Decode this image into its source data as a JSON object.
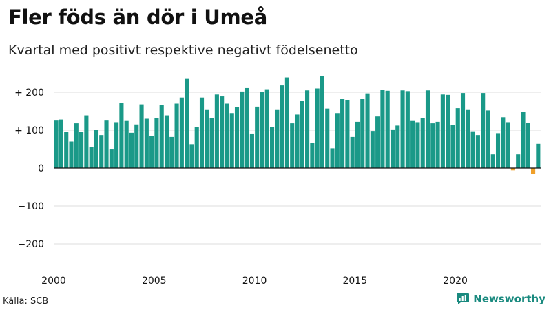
{
  "header": {
    "title": "Fler föds än dör i Umeå",
    "subtitle": "Kvartal med positivt respektive negativt födelsenetto"
  },
  "footer": {
    "source": "Källa: SCB",
    "brand": "Newsworthy"
  },
  "colors": {
    "positive": "#1a9988",
    "negative": "#f0a02a",
    "grid": "#dddddd",
    "zero_line": "#111111",
    "brand": "#1a8a7f"
  },
  "icons": {
    "brand_logo": "bar-chart-speech-icon"
  },
  "chart_data": {
    "type": "bar",
    "title": "Fler föds än dör i Umeå",
    "subtitle": "Kvartal med positivt respektive negativt födelsenetto",
    "xlabel": "",
    "ylabel": "",
    "ylim": [
      -250,
      250
    ],
    "yticks": [
      200,
      100,
      0,
      -100,
      -200
    ],
    "ytick_labels": [
      "+ 200",
      "+ 100",
      "0",
      "−100",
      "−200"
    ],
    "xticks": [
      "2000",
      "2005",
      "2010",
      "2015",
      "2020"
    ],
    "grid": true,
    "legend": "none",
    "start": "2000 Q1",
    "values": [
      127,
      128,
      96,
      70,
      118,
      96,
      139,
      56,
      101,
      87,
      127,
      49,
      121,
      172,
      126,
      93,
      115,
      168,
      130,
      85,
      132,
      167,
      139,
      82,
      170,
      186,
      237,
      63,
      108,
      186,
      155,
      132,
      194,
      189,
      170,
      145,
      160,
      202,
      211,
      91,
      162,
      201,
      208,
      109,
      155,
      218,
      239,
      118,
      141,
      178,
      205,
      67,
      210,
      242,
      157,
      52,
      145,
      182,
      180,
      82,
      122,
      182,
      197,
      98,
      136,
      207,
      204,
      102,
      112,
      205,
      203,
      126,
      121,
      131,
      205,
      118,
      122,
      194,
      193,
      113,
      158,
      198,
      155,
      97,
      87,
      198,
      152,
      36,
      92,
      134,
      121,
      -6,
      36,
      149,
      119,
      -15,
      64
    ]
  }
}
